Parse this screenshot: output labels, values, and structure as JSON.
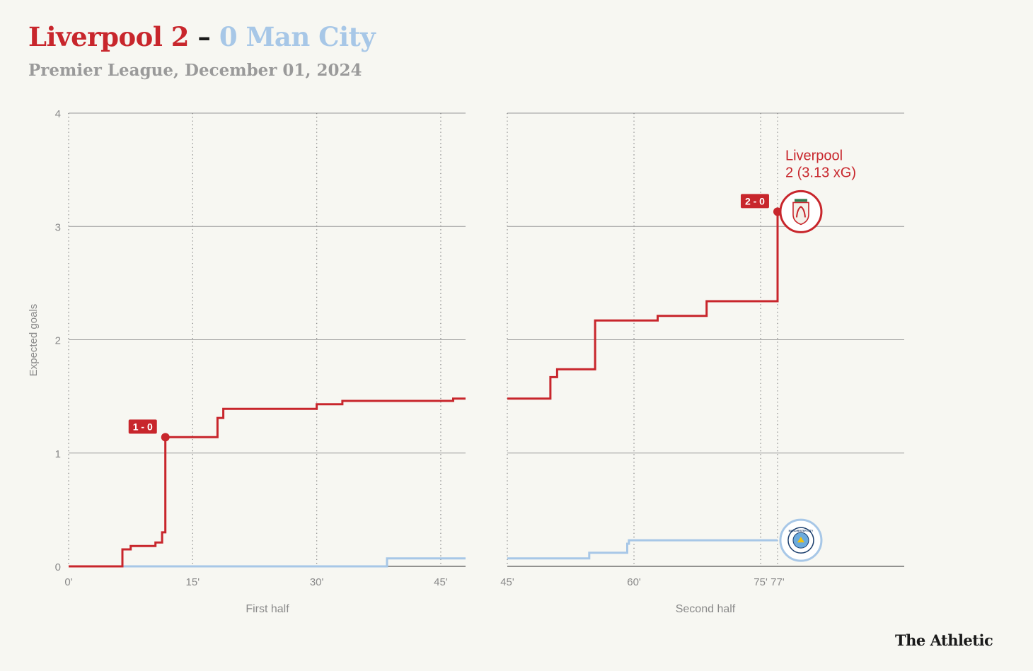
{
  "header": {
    "home_team": "Liverpool",
    "home_score": "2",
    "separator": "–",
    "away_score": "0",
    "away_team": "Man City",
    "subtitle": "Premier League, December 01, 2024"
  },
  "brand": "The Athletic",
  "colors": {
    "home": "#c8262c",
    "away": "#a7c7e7",
    "grid": "#9a9a9a",
    "background": "#f7f7f2",
    "axis_text": "#8a8a8a"
  },
  "chart_data": {
    "type": "line",
    "step": true,
    "ylabel": "Expected goals",
    "ylim": [
      0,
      4
    ],
    "yticks": [
      0,
      1,
      2,
      3,
      4
    ],
    "panels": [
      {
        "label": "First half",
        "xlim": [
          0,
          48
        ],
        "xticks": [
          0,
          15,
          30,
          45
        ],
        "xtick_labels": [
          "0'",
          "15'",
          "30'",
          "45'"
        ]
      },
      {
        "label": "Second half",
        "xlim": [
          45,
          92
        ],
        "xticks": [
          45,
          60,
          75,
          77
        ],
        "xtick_labels": [
          "45'",
          "60'",
          "75'",
          "77'"
        ]
      }
    ],
    "series": [
      {
        "team": "Liverpool",
        "end_label_line1": "Liverpool",
        "end_label_line2": "2 (3.13 xG)",
        "end_minute": 77,
        "first_half": [
          [
            0,
            0
          ],
          [
            6.5,
            0.15
          ],
          [
            7.5,
            0.18
          ],
          [
            10.5,
            0.21
          ],
          [
            11.3,
            0.3
          ],
          [
            11.7,
            1.14
          ],
          [
            18,
            1.31
          ],
          [
            18.7,
            1.39
          ],
          [
            30,
            1.43
          ],
          [
            33.1,
            1.46
          ],
          [
            46.5,
            1.48
          ],
          [
            48,
            1.48
          ]
        ],
        "second_half": [
          [
            45,
            1.48
          ],
          [
            50.1,
            1.67
          ],
          [
            50.9,
            1.74
          ],
          [
            55.4,
            2.17
          ],
          [
            62.8,
            2.21
          ],
          [
            68.6,
            2.34
          ],
          [
            77,
            3.13
          ]
        ]
      },
      {
        "team": "Man City",
        "end_minute": 77,
        "first_half": [
          [
            0,
            0
          ],
          [
            38.5,
            0.07
          ],
          [
            48,
            0.07
          ]
        ],
        "second_half": [
          [
            45,
            0.07
          ],
          [
            54.7,
            0.12
          ],
          [
            59.2,
            0.2
          ],
          [
            59.4,
            0.23
          ],
          [
            77,
            0.23
          ]
        ]
      }
    ],
    "goals": [
      {
        "label": "1 - 0",
        "minute": 11.7,
        "xg": 1.14,
        "half": "first_half"
      },
      {
        "label": "2 - 0",
        "minute": 77,
        "xg": 3.13,
        "half": "second_half"
      }
    ],
    "badges": [
      {
        "team": "Liverpool",
        "icon": "liverpool-crest-icon",
        "ring_text": "",
        "xg": 3.13
      },
      {
        "team": "Man City",
        "icon": "man-city-crest-icon",
        "ring_text": "MANCHESTER CITY",
        "xg": 0.23
      }
    ]
  }
}
